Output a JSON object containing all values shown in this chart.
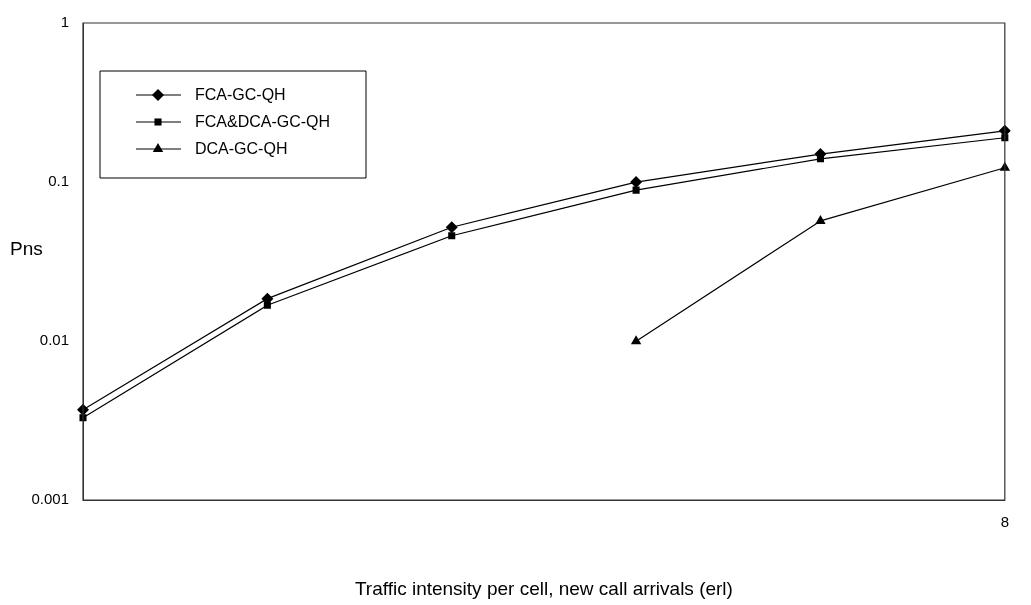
{
  "chart_data": {
    "type": "line",
    "xlabel": "Traffic intensity per cell, new call arrivals (erl)",
    "ylabel": "Pns",
    "categories": [
      null,
      null,
      null,
      null,
      null,
      "8"
    ],
    "series": [
      {
        "name": "FCA-GC-QH",
        "color": "#000000",
        "marker": "diamond",
        "values": [
          0.0037,
          0.0185,
          0.052,
          0.1,
          0.15,
          0.21
        ]
      },
      {
        "name": "FCA&DCA-GC-QH",
        "color": "#000000",
        "marker": "square",
        "values": [
          0.0033,
          0.0168,
          0.046,
          0.089,
          0.14,
          0.19
        ]
      },
      {
        "name": "DCA-GC-QH",
        "color": "#000000",
        "marker": "triangle",
        "values": [
          null,
          null,
          null,
          0.01,
          0.057,
          0.123
        ]
      }
    ],
    "log": "y",
    "ylim": [
      0.001,
      1
    ],
    "yticks": [
      0.001,
      0.01,
      0.1,
      1
    ],
    "grid": false,
    "legend": "top left",
    "line_style": "solid"
  }
}
